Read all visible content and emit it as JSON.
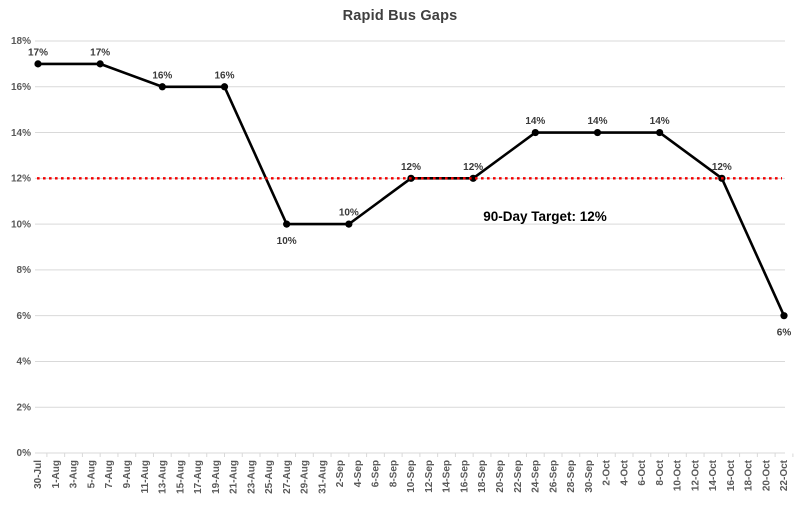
{
  "chart_data": {
    "type": "line",
    "title": "Rapid Bus Gaps",
    "x_tick_labels": [
      "30-Jul",
      "1-Aug",
      "3-Aug",
      "5-Aug",
      "7-Aug",
      "9-Aug",
      "11-Aug",
      "13-Aug",
      "15-Aug",
      "17-Aug",
      "19-Aug",
      "21-Aug",
      "23-Aug",
      "25-Aug",
      "27-Aug",
      "29-Aug",
      "31-Aug",
      "2-Sep",
      "4-Sep",
      "6-Sep",
      "8-Sep",
      "10-Sep",
      "12-Sep",
      "14-Sep",
      "16-Sep",
      "18-Sep",
      "20-Sep",
      "22-Sep",
      "24-Sep",
      "26-Sep",
      "28-Sep",
      "30-Sep",
      "2-Oct",
      "4-Oct",
      "6-Oct",
      "8-Oct",
      "10-Oct",
      "12-Oct",
      "14-Oct",
      "16-Oct",
      "18-Oct",
      "20-Oct",
      "22-Oct"
    ],
    "y_tick_labels": [
      "0%",
      "2%",
      "4%",
      "6%",
      "8%",
      "10%",
      "12%",
      "14%",
      "16%",
      "18%"
    ],
    "ylim": [
      0,
      18
    ],
    "y_tick_step": 2,
    "grid": true,
    "legend": "none",
    "series": [
      {
        "name": "Rapid Bus Gaps",
        "color": "#000000",
        "marker": "circle",
        "ticks_per_point": 3.5,
        "points": [
          {
            "date": "30-Jul",
            "value": 17,
            "label": "17%",
            "label_side": "above"
          },
          {
            "date": "6-Aug",
            "value": 17,
            "label": "17%",
            "label_side": "above"
          },
          {
            "date": "13-Aug",
            "value": 16,
            "label": "16%",
            "label_side": "above"
          },
          {
            "date": "20-Aug",
            "value": 16,
            "label": "16%",
            "label_side": "above"
          },
          {
            "date": "27-Aug",
            "value": 10,
            "label": "10%",
            "label_side": "below"
          },
          {
            "date": "3-Sep",
            "value": 10,
            "label": "10%",
            "label_side": "above"
          },
          {
            "date": "10-Sep",
            "value": 12,
            "label": "12%",
            "label_side": "above"
          },
          {
            "date": "17-Sep",
            "value": 12,
            "label": "12%",
            "label_side": "above"
          },
          {
            "date": "24-Sep",
            "value": 14,
            "label": "14%",
            "label_side": "above"
          },
          {
            "date": "1-Oct",
            "value": 14,
            "label": "14%",
            "label_side": "above"
          },
          {
            "date": "8-Oct",
            "value": 14,
            "label": "14%",
            "label_side": "above"
          },
          {
            "date": "15-Oct",
            "value": 12,
            "label": "12%",
            "label_side": "above"
          },
          {
            "date": "22-Oct",
            "value": 6,
            "label": "6%",
            "label_side": "below"
          }
        ]
      }
    ],
    "target_line": {
      "value": 12,
      "label": "90-Day Target: 12%",
      "color": "#f20000",
      "style": "dotted"
    },
    "colors": {
      "series_line": "#000000",
      "marker": "#000000",
      "gridline": "#d9d9d9",
      "axis_label": "#595959",
      "data_label": "#3a3a3a",
      "title": "#3f3f3f",
      "target": "#f20000",
      "background": "#ffffff"
    }
  }
}
